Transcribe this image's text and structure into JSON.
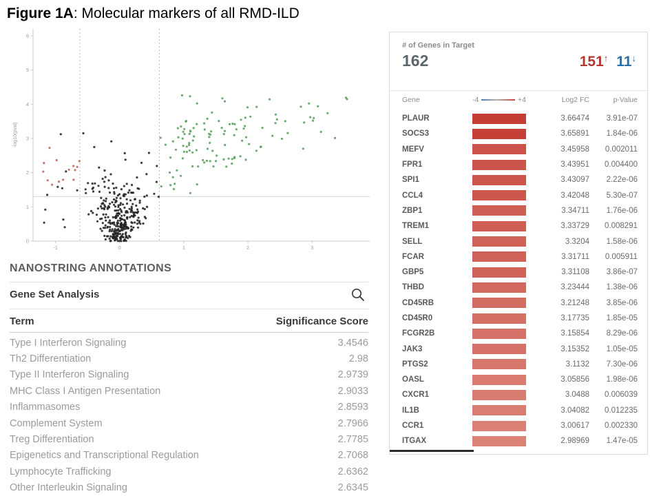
{
  "title": {
    "bold": "Figure 1A",
    "rest": ": Molecular markers of all RMD-ILD"
  },
  "colors": {
    "up_text": "#b03a30",
    "down_text": "#2e6da4",
    "total_text": "#5b676c",
    "bar_high": "#c43e35",
    "bar_low": "#db8276",
    "scale_left": "#4f7bb0",
    "scale_right": "#c2423a",
    "point_nonsig": "#222222",
    "point_up": "#5a9e5d",
    "point_down": "#c0635c"
  },
  "annotations": {
    "heading": "NANOSTRING ANNOTATIONS",
    "section_title": "Gene Set Analysis",
    "columns": {
      "term": "Term",
      "score": "Significance Score"
    },
    "rows": [
      {
        "term": "Type I Interferon Signaling",
        "score": "3.4546"
      },
      {
        "term": "Th2 Differentiation",
        "score": "2.98"
      },
      {
        "term": "Type II Interferon Signaling",
        "score": "2.9739"
      },
      {
        "term": "MHC Class I Antigen Presentation",
        "score": "2.9033"
      },
      {
        "term": "Inflammasomes",
        "score": "2.8593"
      },
      {
        "term": "Complement System",
        "score": "2.7966"
      },
      {
        "term": "Treg Differentiation",
        "score": "2.7785"
      },
      {
        "term": "Epigenetics and Transcriptional Regulation",
        "score": "2.7068"
      },
      {
        "term": "Lymphocyte Trafficking",
        "score": "2.6362"
      },
      {
        "term": "Other Interleukin Signaling",
        "score": "2.6345"
      }
    ]
  },
  "gene_panel": {
    "header_label": "# of Genes in Target",
    "total": "162",
    "up": {
      "count": "151",
      "arrow": "↑"
    },
    "down": {
      "count": "11",
      "arrow": "↓"
    },
    "columns": {
      "gene": "Gene",
      "scale_min": "-4",
      "scale_max": "+4",
      "log2fc": "Log2 FC",
      "pvalue": "p-Value"
    },
    "rows": [
      {
        "gene": "PLAUR",
        "log2fc": "3.66474",
        "pvalue": "3.91e-07"
      },
      {
        "gene": "SOCS3",
        "log2fc": "3.65891",
        "pvalue": "1.84e-06"
      },
      {
        "gene": "MEFV",
        "log2fc": "3.45958",
        "pvalue": "0.002011"
      },
      {
        "gene": "FPR1",
        "log2fc": "3.43951",
        "pvalue": "0.004400"
      },
      {
        "gene": "SPI1",
        "log2fc": "3.43097",
        "pvalue": "2.22e-06"
      },
      {
        "gene": "CCL4",
        "log2fc": "3.42048",
        "pvalue": "5.30e-07"
      },
      {
        "gene": "ZBP1",
        "log2fc": "3.34711",
        "pvalue": "1.76e-06"
      },
      {
        "gene": "TREM1",
        "log2fc": "3.33729",
        "pvalue": "0.008291"
      },
      {
        "gene": "SELL",
        "log2fc": "3.3204",
        "pvalue": "1.58e-06"
      },
      {
        "gene": "FCAR",
        "log2fc": "3.31711",
        "pvalue": "0.005911"
      },
      {
        "gene": "GBP5",
        "log2fc": "3.31108",
        "pvalue": "3.86e-07"
      },
      {
        "gene": "THBD",
        "log2fc": "3.23444",
        "pvalue": "1.38e-06"
      },
      {
        "gene": "CD45RB",
        "log2fc": "3.21248",
        "pvalue": "3.85e-06"
      },
      {
        "gene": "CD45R0",
        "log2fc": "3.17735",
        "pvalue": "1.85e-05"
      },
      {
        "gene": "FCGR2B",
        "log2fc": "3.15854",
        "pvalue": "8.29e-06"
      },
      {
        "gene": "JAK3",
        "log2fc": "3.15352",
        "pvalue": "1.05e-05"
      },
      {
        "gene": "PTGS2",
        "log2fc": "3.1132",
        "pvalue": "7.30e-06"
      },
      {
        "gene": "OASL",
        "log2fc": "3.05856",
        "pvalue": "1.98e-06"
      },
      {
        "gene": "CXCR1",
        "log2fc": "3.0488",
        "pvalue": "0.006039"
      },
      {
        "gene": "IL1B",
        "log2fc": "3.04082",
        "pvalue": "0.012235"
      },
      {
        "gene": "CCR1",
        "log2fc": "3.00617",
        "pvalue": "0.002330"
      },
      {
        "gene": "ITGAX",
        "log2fc": "2.98969",
        "pvalue": "1.47e-05"
      }
    ]
  },
  "chart_data": {
    "type": "scatter",
    "subtype": "volcano",
    "title": "",
    "xlabel": "",
    "ylabel": "-log10(pval)",
    "xlim": [
      -1.35,
      3.9
    ],
    "ylim": [
      0,
      6.2
    ],
    "xticks": [
      -1,
      0,
      1,
      2,
      3
    ],
    "yticks": [
      0,
      1,
      2,
      3,
      4,
      5,
      6
    ],
    "grid": false,
    "thresholds": {
      "x": [
        -0.62,
        0.62
      ],
      "y": 1.3
    },
    "counts": {
      "upregulated": 151,
      "downregulated": 11,
      "total_in_target": 162
    },
    "points_spec": {
      "note": "dense volcano scatter; points procedurally placed to match figure",
      "seed": 20,
      "groups": [
        {
          "kind": "funnel",
          "count": 320,
          "color": "#222222"
        },
        {
          "kind": "up",
          "count": 115,
          "color": "#5a9e5d"
        },
        {
          "kind": "left_tail",
          "count": 16,
          "color": "#222222"
        },
        {
          "kind": "down",
          "count": 9,
          "color": "#c0635c"
        }
      ]
    }
  }
}
